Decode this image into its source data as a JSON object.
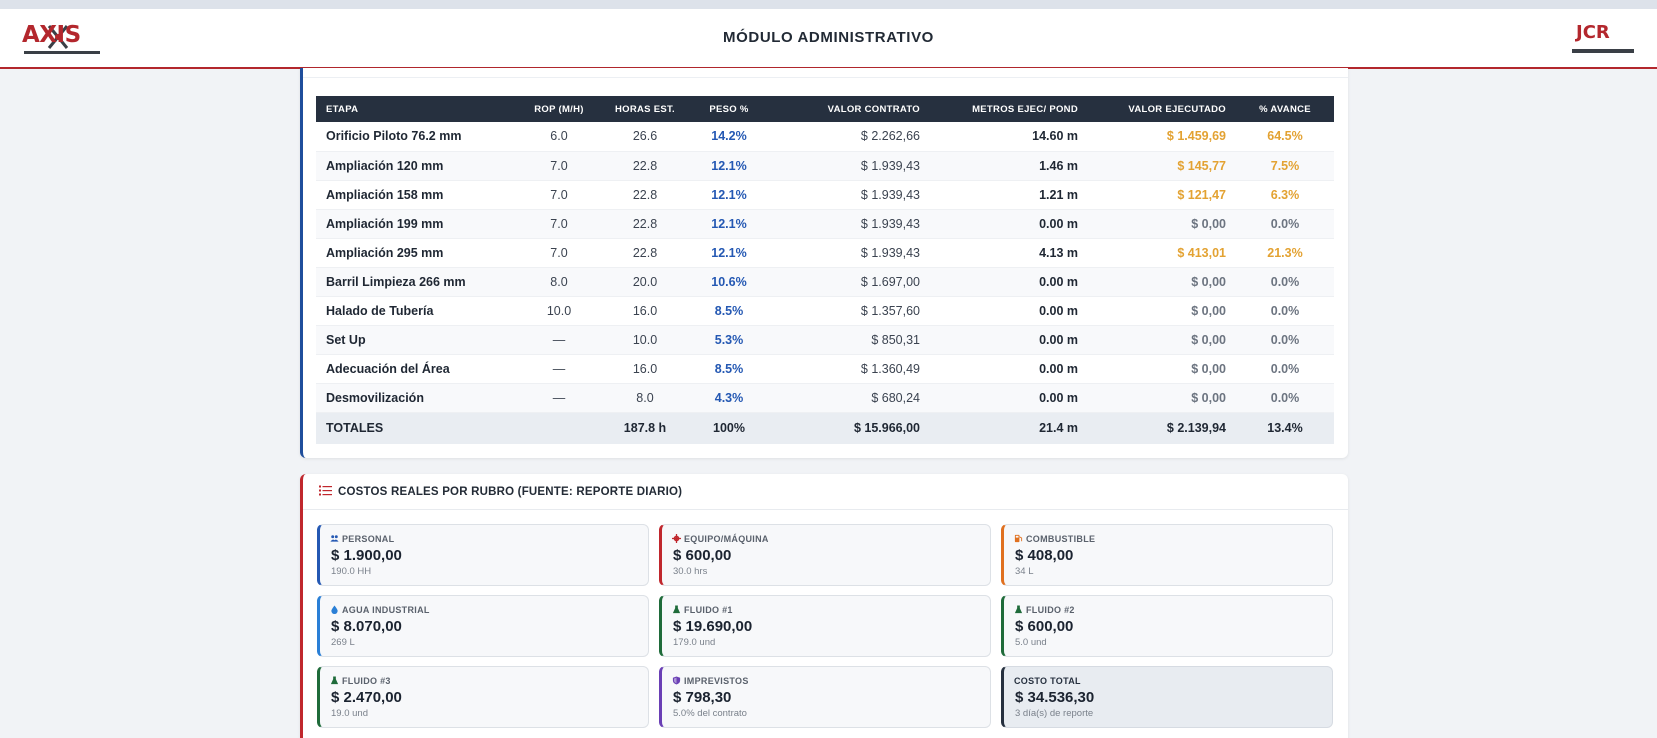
{
  "header": {
    "title": "MÓDULO ADMINISTRATIVO",
    "logo_left": "AXIS",
    "logo_right": "JCR"
  },
  "etapas_table": {
    "columns": [
      "ETAPA",
      "ROP (M/H)",
      "HORAS EST.",
      "PESO %",
      "VALOR CONTRATO",
      "METROS EJEC/ POND",
      "VALOR EJECUTADO",
      "% AVANCE"
    ],
    "rows": [
      {
        "etapa": "Orificio Piloto 76.2 mm",
        "rop": "6.0",
        "horas": "26.6",
        "peso": "14.2%",
        "valor_contrato": "$ 2.262,66",
        "metros": "14.60 m",
        "valor_ejecutado": "$ 1.459,69",
        "avance": "64.5%",
        "executed": true
      },
      {
        "etapa": "Ampliación 120 mm",
        "rop": "7.0",
        "horas": "22.8",
        "peso": "12.1%",
        "valor_contrato": "$ 1.939,43",
        "metros": "1.46 m",
        "valor_ejecutado": "$ 145,77",
        "avance": "7.5%",
        "executed": true
      },
      {
        "etapa": "Ampliación 158 mm",
        "rop": "7.0",
        "horas": "22.8",
        "peso": "12.1%",
        "valor_contrato": "$ 1.939,43",
        "metros": "1.21 m",
        "valor_ejecutado": "$ 121,47",
        "avance": "6.3%",
        "executed": true
      },
      {
        "etapa": "Ampliación 199 mm",
        "rop": "7.0",
        "horas": "22.8",
        "peso": "12.1%",
        "valor_contrato": "$ 1.939,43",
        "metros": "0.00 m",
        "valor_ejecutado": "$ 0,00",
        "avance": "0.0%",
        "executed": false
      },
      {
        "etapa": "Ampliación 295 mm",
        "rop": "7.0",
        "horas": "22.8",
        "peso": "12.1%",
        "valor_contrato": "$ 1.939,43",
        "metros": "4.13 m",
        "valor_ejecutado": "$ 413,01",
        "avance": "21.3%",
        "executed": true
      },
      {
        "etapa": "Barril Limpieza 266 mm",
        "rop": "8.0",
        "horas": "20.0",
        "peso": "10.6%",
        "valor_contrato": "$ 1.697,00",
        "metros": "0.00 m",
        "valor_ejecutado": "$ 0,00",
        "avance": "0.0%",
        "executed": false
      },
      {
        "etapa": "Halado de Tubería",
        "rop": "10.0",
        "horas": "16.0",
        "peso": "8.5%",
        "valor_contrato": "$ 1.357,60",
        "metros": "0.00 m",
        "valor_ejecutado": "$ 0,00",
        "avance": "0.0%",
        "executed": false
      },
      {
        "etapa": "Set Up",
        "rop": "—",
        "horas": "10.0",
        "peso": "5.3%",
        "valor_contrato": "$ 850,31",
        "metros": "0.00 m",
        "valor_ejecutado": "$ 0,00",
        "avance": "0.0%",
        "executed": false
      },
      {
        "etapa": "Adecuación del Área",
        "rop": "—",
        "horas": "16.0",
        "peso": "8.5%",
        "valor_contrato": "$ 1.360,49",
        "metros": "0.00 m",
        "valor_ejecutado": "$ 0,00",
        "avance": "0.0%",
        "executed": false
      },
      {
        "etapa": "Desmovilización",
        "rop": "—",
        "horas": "8.0",
        "peso": "4.3%",
        "valor_contrato": "$ 680,24",
        "metros": "0.00 m",
        "valor_ejecutado": "$ 0,00",
        "avance": "0.0%",
        "executed": false
      }
    ],
    "totals": {
      "label": "TOTALES",
      "rop": "",
      "horas": "187.8 h",
      "peso": "100%",
      "valor_contrato": "$ 15.966,00",
      "metros": "21.4 m",
      "valor_ejecutado": "$ 2.139,94",
      "avance": "13.4%"
    }
  },
  "costos": {
    "title": "COSTOS REALES POR RUBRO (FUENTE: REPORTE DIARIO)",
    "tiles": [
      {
        "label": "PERSONAL",
        "value": "$ 1.900,00",
        "sub": "190.0 HH",
        "icon": "people-icon",
        "color": "#2458b3"
      },
      {
        "label": "EQUIPO/MÁQUINA",
        "value": "$ 600,00",
        "sub": "30.0 hrs",
        "icon": "gear-icon",
        "color": "#c0272d"
      },
      {
        "label": "COMBUSTIBLE",
        "value": "$ 408,00",
        "sub": "34 L",
        "icon": "fuel-pump-icon",
        "color": "#e0701f"
      },
      {
        "label": "AGUA INDUSTRIAL",
        "value": "$ 8.070,00",
        "sub": "269 L",
        "icon": "water-drop-icon",
        "color": "#2a7fd6"
      },
      {
        "label": "FLUIDO #1",
        "value": "$ 19.690,00",
        "sub": "179.0 und",
        "icon": "flask-icon",
        "color": "#1f6b3a"
      },
      {
        "label": "FLUIDO #2",
        "value": "$ 600,00",
        "sub": "5.0 und",
        "icon": "flask-icon",
        "color": "#1f6b3a"
      },
      {
        "label": "FLUIDO #3",
        "value": "$ 2.470,00",
        "sub": "19.0 und",
        "icon": "flask-icon",
        "color": "#1f6b3a"
      },
      {
        "label": "IMPREVISTOS",
        "value": "$ 798,30",
        "sub": "5.0% del contrato",
        "icon": "shield-icon",
        "color": "#6a3fb5"
      },
      {
        "label": "COSTO TOTAL",
        "value": "$ 34.536,30",
        "sub": "3 día(s) de reporte",
        "icon": "",
        "color": "#26303f"
      }
    ]
  }
}
